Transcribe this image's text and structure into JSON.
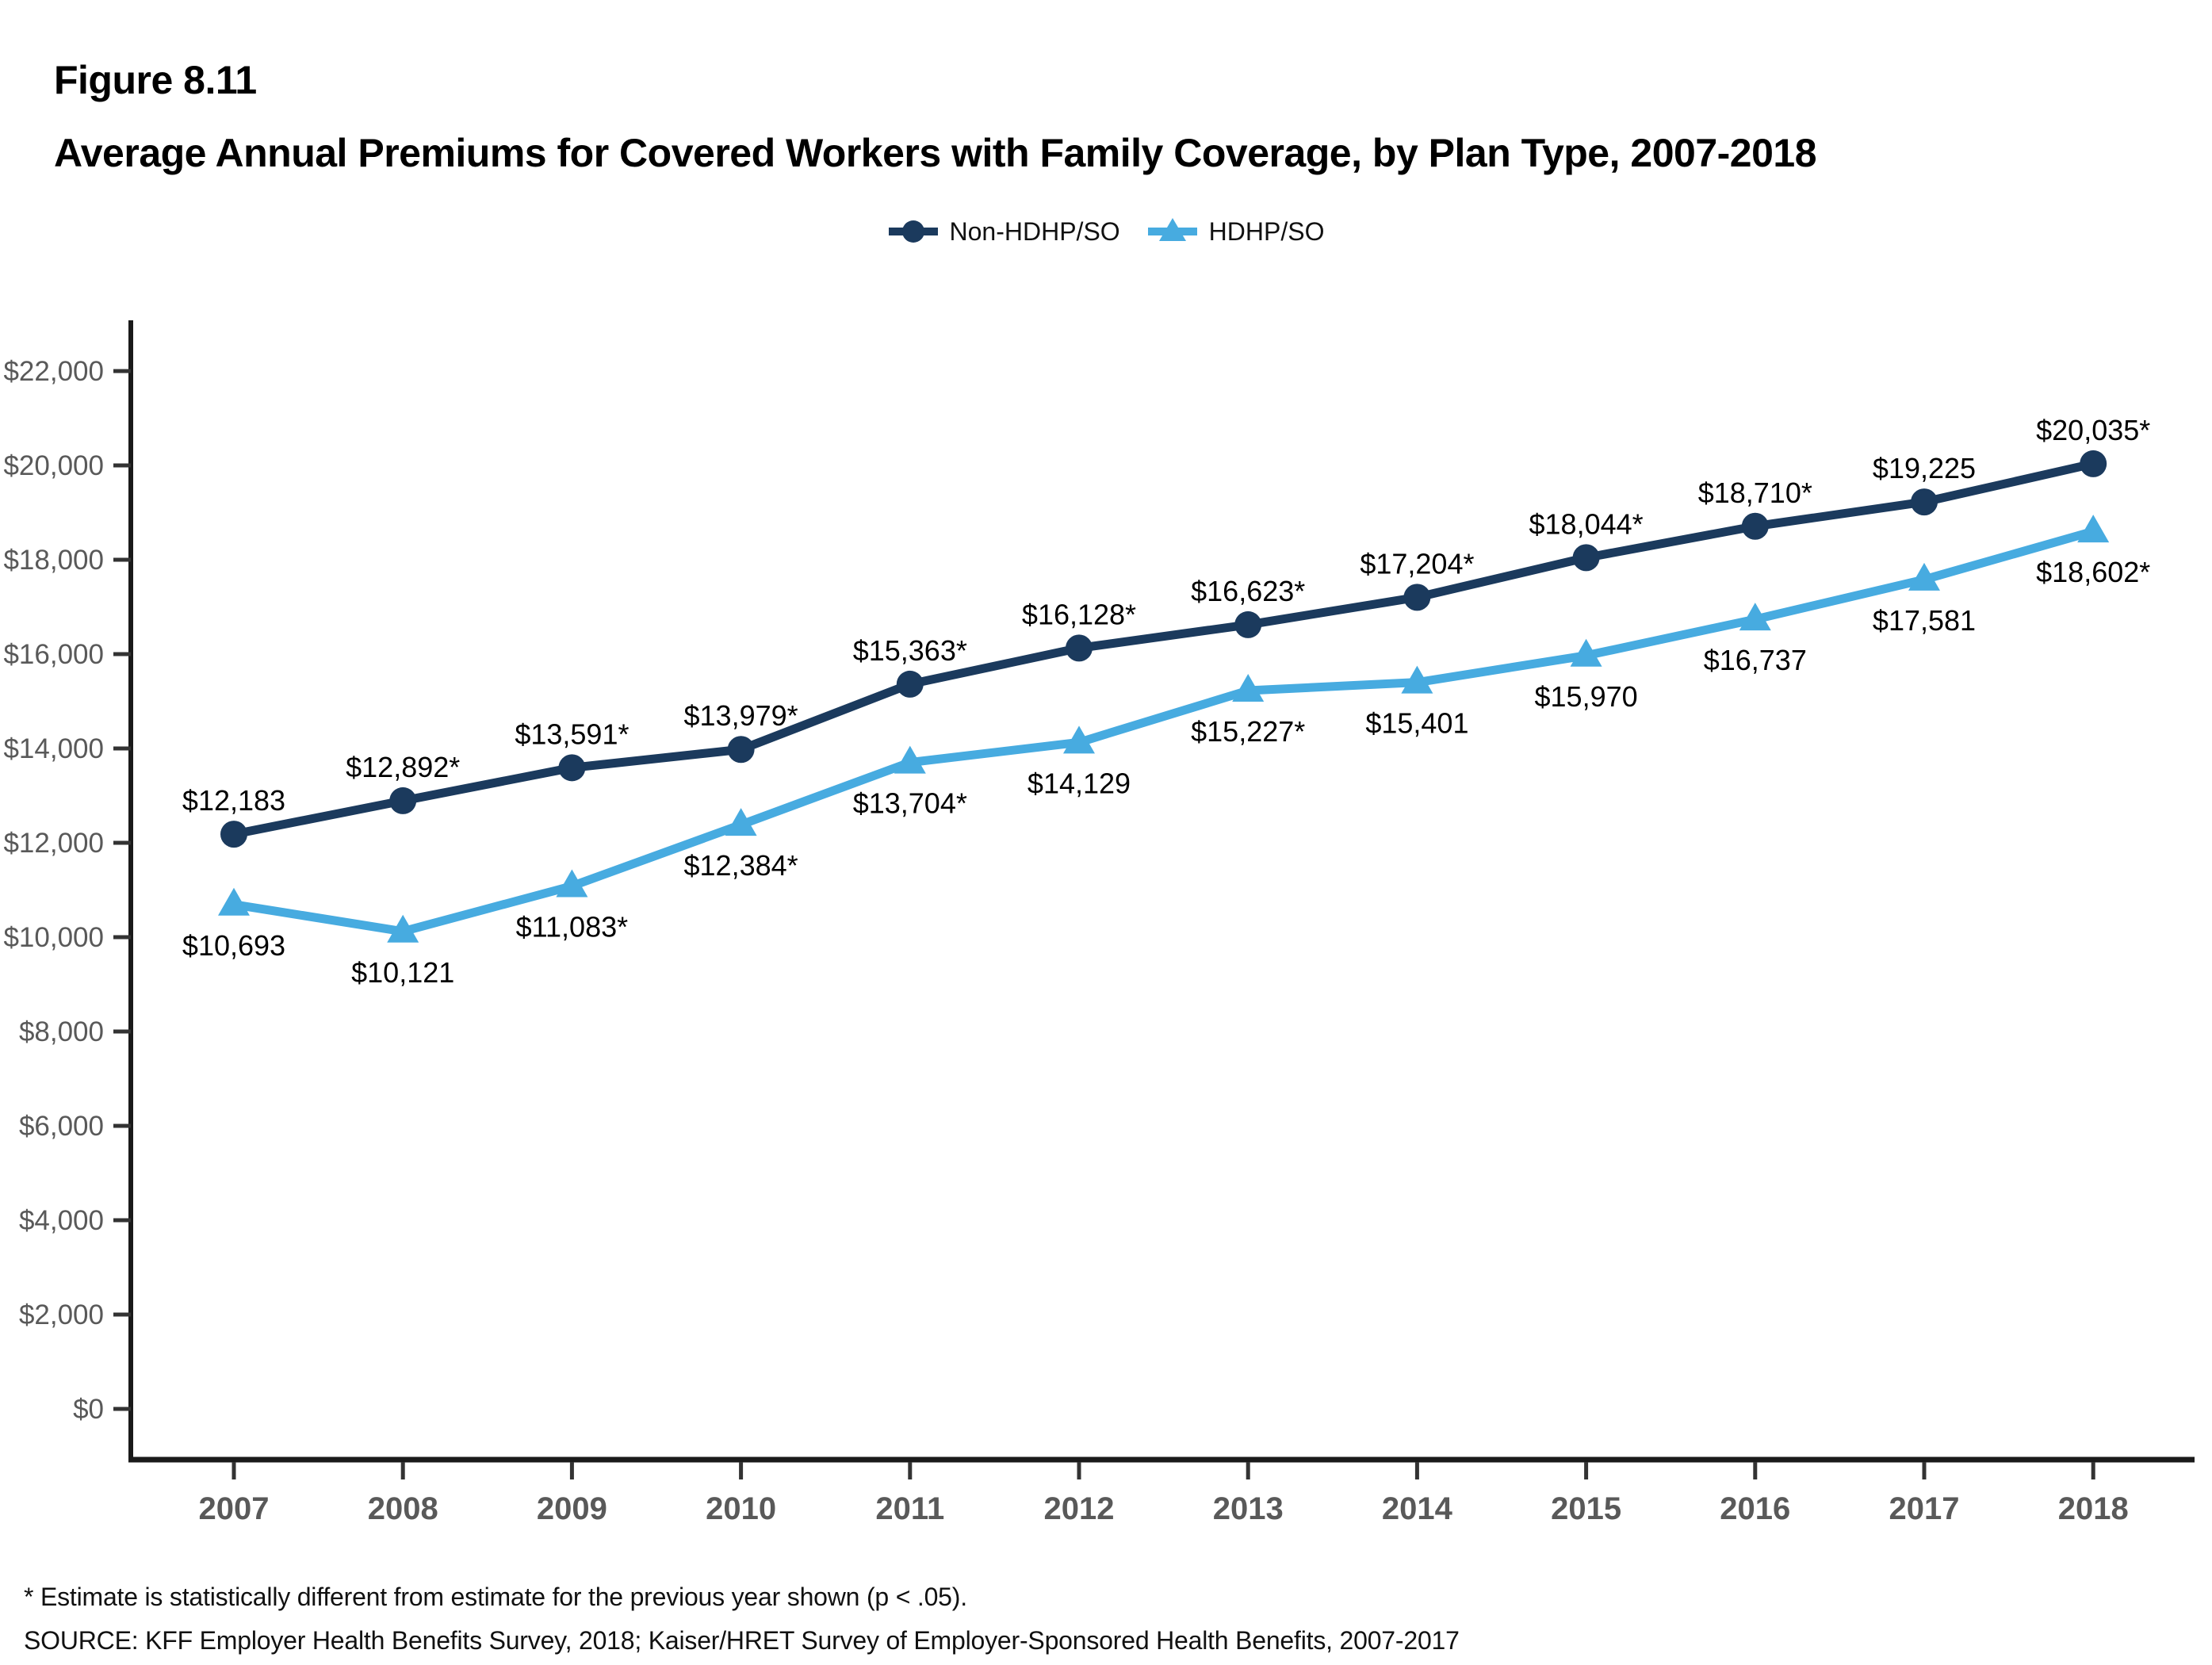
{
  "figure": {
    "label": "Figure 8.11",
    "title": "Average Annual Premiums for Covered Workers with Family Coverage, by Plan Type, 2007-2018"
  },
  "legend": [
    {
      "label": "Non-HDHP/SO",
      "marker": "circle",
      "color": "#1b3a5d"
    },
    {
      "label": "HDHP/SO",
      "marker": "triangle",
      "color": "#47abe0"
    }
  ],
  "chart_data": {
    "type": "line",
    "title": "Average Annual Premiums for Covered Workers with Family Coverage, by Plan Type, 2007-2018",
    "categories": [
      "2007",
      "2008",
      "2009",
      "2010",
      "2011",
      "2012",
      "2013",
      "2014",
      "2015",
      "2016",
      "2017",
      "2018"
    ],
    "series": [
      {
        "name": "Non-HDHP/SO",
        "color": "#1b3a5d",
        "marker": "circle",
        "values": [
          12183,
          12892,
          13591,
          13979,
          15363,
          16128,
          16623,
          17204,
          18044,
          18710,
          19225,
          20035
        ],
        "point_labels": [
          "$12,183",
          "$12,892*",
          "$13,591*",
          "$13,979*",
          "$15,363*",
          "$16,128*",
          "$16,623*",
          "$17,204*",
          "$18,044*",
          "$18,710*",
          "$19,225",
          "$20,035*"
        ]
      },
      {
        "name": "HDHP/SO",
        "color": "#47abe0",
        "marker": "triangle",
        "values": [
          10693,
          10121,
          11083,
          12384,
          13704,
          14129,
          15227,
          15401,
          15970,
          16737,
          17581,
          18602
        ],
        "point_labels": [
          "$10,693",
          "$10,121",
          "$11,083*",
          "$12,384*",
          "$13,704*",
          "$14,129",
          "$15,227*",
          "$15,401",
          "$15,970",
          "$16,737",
          "$17,581",
          "$18,602*"
        ]
      }
    ],
    "xlabel": "",
    "ylabel": "",
    "y_axis": {
      "min": 0,
      "max": 22000,
      "step": 2000,
      "tick_labels": [
        "$0",
        "$2,000",
        "$4,000",
        "$6,000",
        "$8,000",
        "$10,000",
        "$12,000",
        "$14,000",
        "$16,000",
        "$18,000",
        "$20,000",
        "$22,000"
      ]
    },
    "grid": false,
    "legend_position": "top-center"
  },
  "notes": {
    "asterisk_note": "* Estimate is statistically different from estimate for the previous year shown (p < .05).",
    "source": "SOURCE: KFF Employer Health Benefits Survey, 2018; Kaiser/HRET Survey of Employer-Sponsored Health Benefits, 2007-2017"
  },
  "style_colors": {
    "axis_line": "#1a1a1a",
    "tick_mark": "#333333",
    "tick_label": "#595959",
    "year_label": "#595959",
    "data_label": "#000000"
  }
}
